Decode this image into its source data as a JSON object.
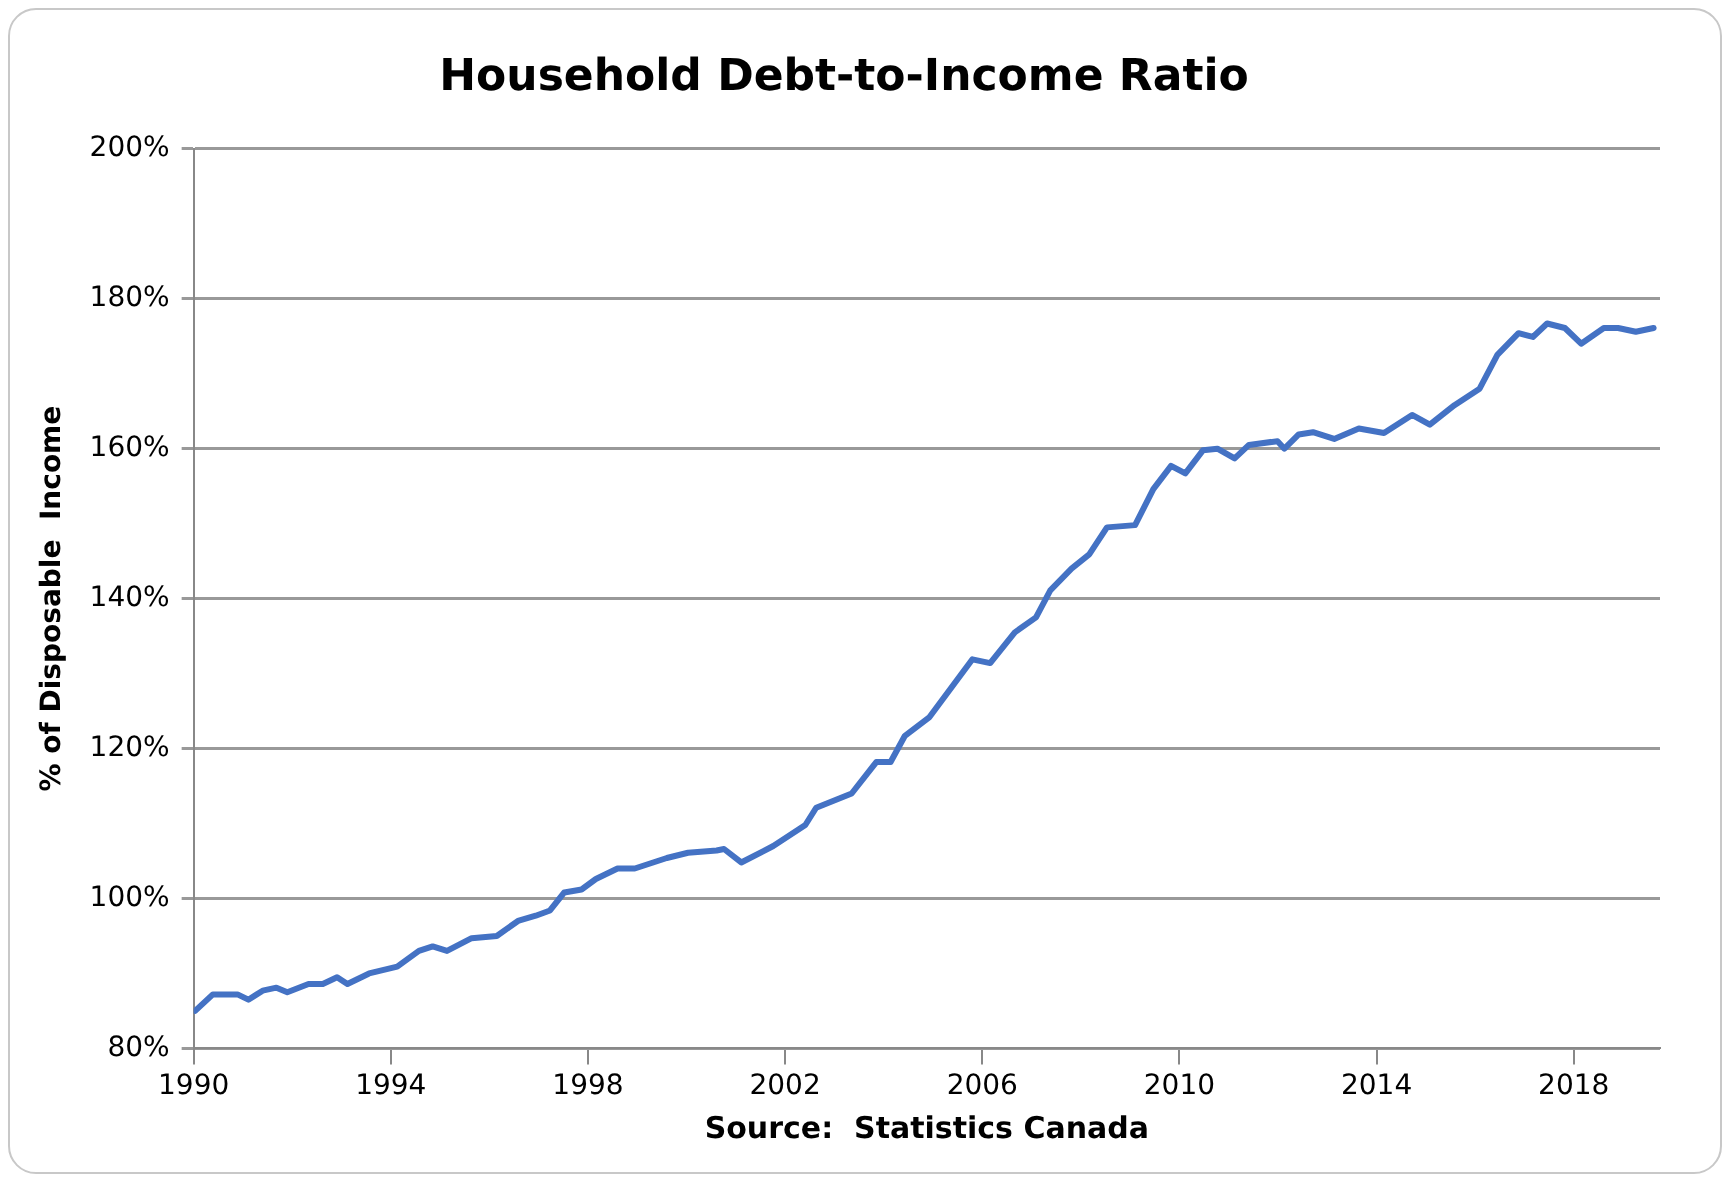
{
  "chart_data": {
    "type": "line",
    "title": "Household Debt-to-Income Ratio",
    "ylabel": "% of Disposable  Income",
    "annotations": [
      "Source:  Statistics Canada"
    ],
    "x": [
      1990.03,
      1990.39,
      1990.89,
      1991.11,
      1991.4,
      1991.68,
      1991.9,
      1992.33,
      1992.62,
      1992.91,
      1993.12,
      1993.56,
      1994.13,
      1994.57,
      1994.85,
      1995.14,
      1995.64,
      1996.15,
      1996.58,
      1996.94,
      1997.23,
      1997.52,
      1997.87,
      1998.16,
      1998.6,
      1998.95,
      1999.6,
      2000.03,
      2000.61,
      2000.76,
      2001.11,
      2001.76,
      2002.41,
      2002.63,
      2003.35,
      2003.85,
      2004.14,
      2004.43,
      2004.93,
      2005.8,
      2006.16,
      2006.66,
      2007.09,
      2007.38,
      2007.81,
      2008.17,
      2008.53,
      2009.1,
      2009.47,
      2009.83,
      2010.12,
      2010.48,
      2010.77,
      2011.12,
      2011.41,
      2011.99,
      2012.13,
      2012.42,
      2012.71,
      2013.14,
      2013.64,
      2014.15,
      2014.72,
      2015.08,
      2015.58,
      2016.09,
      2016.45,
      2016.88,
      2017.17,
      2017.46,
      2017.82,
      2018.15,
      2018.61,
      2018.9,
      2019.26,
      2019.62
    ],
    "series": [
      {
        "color": "#4472c4",
        "values": [
          85,
          87.2,
          87.2,
          86.5,
          87.7,
          88.1,
          87.5,
          88.6,
          88.6,
          89.5,
          88.6,
          90,
          90.9,
          93,
          93.6,
          93,
          94.7,
          95,
          97,
          97.7,
          98.4,
          100.8,
          101.2,
          102.6,
          104,
          104,
          105.4,
          106.1,
          106.4,
          106.6,
          104.8,
          107,
          109.8,
          112.1,
          114,
          118.2,
          118.2,
          121.7,
          124.2,
          131.9,
          131.4,
          135.5,
          137.5,
          141.1,
          144,
          145.9,
          149.5,
          149.8,
          154.6,
          157.7,
          156.7,
          159.8,
          160,
          158.7,
          160.5,
          161,
          160,
          161.9,
          162.2,
          161.3,
          162.7,
          162.1,
          164.5,
          163.2,
          165.8,
          168,
          172.5,
          175.4,
          174.9,
          176.7,
          176.1,
          174,
          176.1,
          176.1,
          175.6,
          176.1
        ]
      }
    ],
    "xlim": [
      1990,
      2019.75
    ],
    "xticks": [
      1990,
      1994,
      1998,
      2002,
      2006,
      2010,
      2014,
      2018
    ],
    "ylim": [
      80,
      200
    ],
    "yticks": [
      {
        "value": 80,
        "label": "80%"
      },
      {
        "value": 100,
        "label": "100%"
      },
      {
        "value": 120,
        "label": "120%"
      },
      {
        "value": 140,
        "label": "140%"
      },
      {
        "value": 160,
        "label": "160%"
      },
      {
        "value": 180,
        "label": "180%"
      },
      {
        "value": 200,
        "label": "200%"
      }
    ],
    "grid": "y",
    "legend": false,
    "marker": "none",
    "line_style": "solid"
  }
}
